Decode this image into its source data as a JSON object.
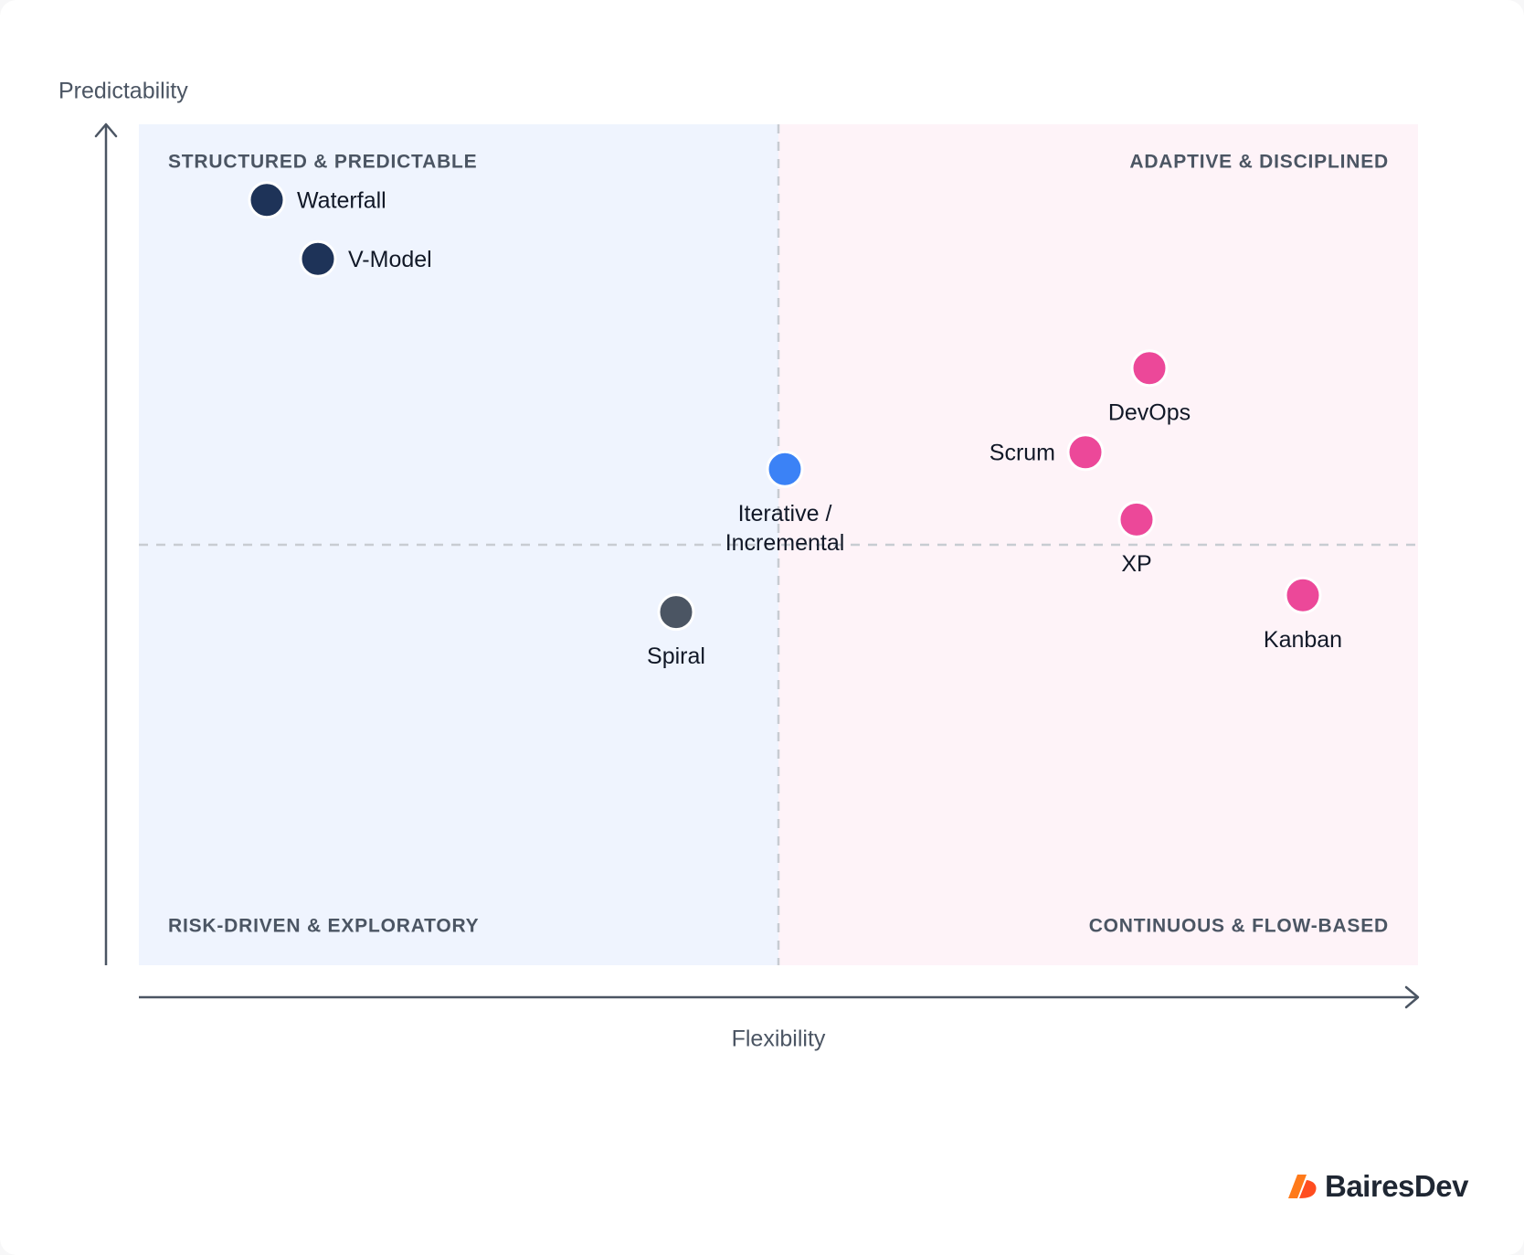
{
  "chart_data": {
    "type": "scatter",
    "xlabel": "Flexibility",
    "ylabel": "Predictability",
    "xlim": [
      0,
      10
    ],
    "ylim": [
      0,
      10
    ],
    "grid": false,
    "divider_x": 5,
    "divider_y": 5,
    "quadrants": {
      "top_left": "STRUCTURED & PREDICTABLE",
      "top_right": "ADAPTIVE & DISCIPLINED",
      "bottom_left": "RISK-DRIVEN & EXPLORATORY",
      "bottom_right": "CONTINUOUS & FLOW-BASED"
    },
    "points": [
      {
        "label": "Waterfall",
        "x": 1.0,
        "y": 9.1,
        "color": "#1e3358",
        "label_pos": "right"
      },
      {
        "label": "V-Model",
        "x": 1.4,
        "y": 8.4,
        "color": "#1e3358",
        "label_pos": "right"
      },
      {
        "label": "DevOps",
        "x": 7.9,
        "y": 7.1,
        "color": "#ec4899",
        "label_pos": "below"
      },
      {
        "label": "Scrum",
        "x": 7.4,
        "y": 6.1,
        "color": "#ec4899",
        "label_pos": "left"
      },
      {
        "label": "Iterative / Incremental",
        "x": 5.05,
        "y": 5.9,
        "color": "#3b82f6",
        "label_pos": "below",
        "label_lines": [
          "Iterative /",
          "Incremental"
        ]
      },
      {
        "label": "XP",
        "x": 7.8,
        "y": 5.3,
        "color": "#ec4899",
        "label_pos": "below"
      },
      {
        "label": "Kanban",
        "x": 9.1,
        "y": 4.4,
        "color": "#ec4899",
        "label_pos": "below"
      },
      {
        "label": "Spiral",
        "x": 4.2,
        "y": 4.2,
        "color": "#4b5563",
        "label_pos": "below"
      }
    ],
    "colors": {
      "left_quadrant_bg": "#eff4fe",
      "right_quadrant_bg": "#fef3f8",
      "axis": "#4b5563",
      "quadrant_label": "#4b5563",
      "divider": "#c8ccd2"
    }
  },
  "brand": {
    "name": "BairesDev",
    "color": "#ff5a1f"
  }
}
